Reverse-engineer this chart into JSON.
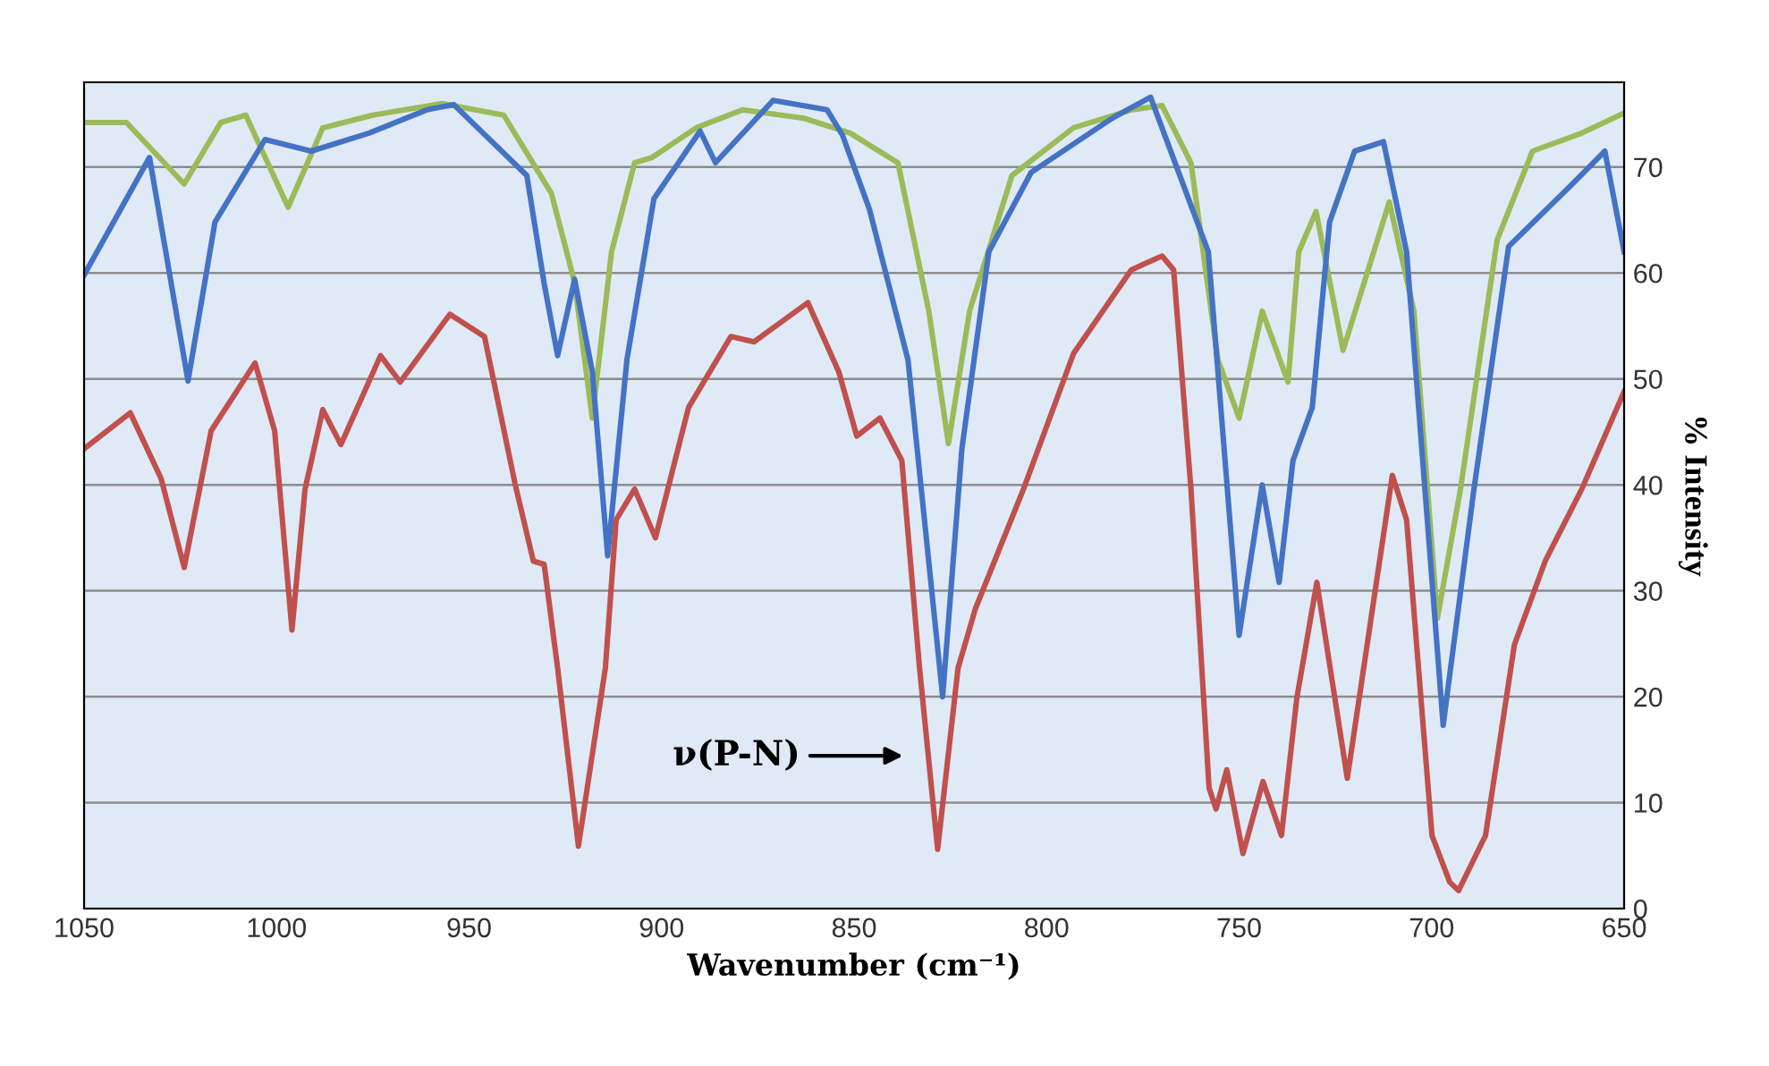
{
  "chart_data": {
    "type": "line",
    "xlabel": "Wavenumber (cm⁻¹)",
    "ylabel": "% Intensity",
    "xlim": [
      1050,
      650
    ],
    "xticks": [
      1050,
      1000,
      950,
      900,
      850,
      800,
      750,
      700,
      650
    ],
    "ylim": [
      0,
      78
    ],
    "yticks": [
      0,
      10,
      20,
      30,
      40,
      50,
      60,
      70
    ],
    "grid": "y",
    "marker": "none",
    "line_style": "solid",
    "annotations": [
      "ν(P-N)"
    ],
    "series": [
      {
        "color": "#9bbb59",
        "x": [
          1050,
          1039,
          1024,
          1014.5,
          1008,
          997,
          988,
          975,
          957,
          941,
          928.6,
          922.6,
          918,
          913,
          907,
          902.5,
          891,
          879,
          863,
          851,
          838.6,
          830.6,
          825.5,
          820,
          809,
          793,
          778,
          770,
          762.5,
          755.5,
          750,
          744,
          737.3,
          734.5,
          730,
          723,
          711,
          704.6,
          698.5,
          692.5,
          683,
          673.8,
          661,
          650
        ],
        "values": [
          74.2,
          74.2,
          68.4,
          74.2,
          74.9,
          66.2,
          73.7,
          74.9,
          76,
          74.9,
          67.5,
          59.1,
          46.3,
          62,
          70.4,
          70.9,
          73.7,
          75.4,
          74.6,
          73.2,
          70.4,
          56.4,
          43.9,
          56.4,
          69.2,
          73.7,
          75.4,
          75.8,
          70.4,
          51.8,
          46.3,
          56.4,
          49.7,
          62,
          65.8,
          52.7,
          66.7,
          56.4,
          27.4,
          39.6,
          63.1,
          71.5,
          73.2,
          75.1
        ]
      },
      {
        "color": "#4472c4",
        "x": [
          1050,
          1033,
          1023,
          1016,
          1003,
          991,
          976,
          961,
          954,
          935,
          930.5,
          927,
          922.6,
          918,
          914,
          909,
          902,
          890,
          886,
          871,
          857,
          853,
          846,
          836,
          827,
          822,
          815,
          804,
          783,
          773,
          758,
          750,
          744,
          739.6,
          736,
          731,
          726.5,
          720,
          712.5,
          706.5,
          697,
          689,
          680,
          664,
          655,
          650
        ],
        "values": [
          59.8,
          70.9,
          49.8,
          64.8,
          72.6,
          71.5,
          73.2,
          75.4,
          75.9,
          69.2,
          59,
          52.2,
          59.4,
          50.7,
          33.3,
          51.8,
          67,
          73.4,
          70.4,
          76.3,
          75.4,
          73,
          66,
          51.8,
          20,
          43.4,
          62,
          69.5,
          74.6,
          76.6,
          62,
          25.8,
          40,
          30.8,
          42.3,
          47.3,
          64.8,
          71.5,
          72.4,
          62,
          17.3,
          39.6,
          62.5,
          68.2,
          71.5,
          62
        ]
      },
      {
        "color": "#c0504d",
        "x": [
          1050,
          1038,
          1030,
          1024,
          1017,
          1005.6,
          1000.5,
          996,
          992.6,
          988,
          983.3,
          973,
          967.9,
          955,
          946,
          938,
          933.3,
          930.5,
          927,
          921.6,
          914.6,
          911.8,
          907,
          901.6,
          893,
          882,
          876,
          862,
          854,
          849.3,
          843.3,
          837.6,
          833,
          828.3,
          823,
          818.5,
          806,
          793,
          778,
          770,
          767,
          762.5,
          757.8,
          756,
          753.2,
          749,
          743.8,
          739,
          735,
          729.8,
          721.9,
          710.2,
          706.5,
          699.9,
          695.3,
          693,
          686,
          678.5,
          670.5,
          661,
          650
        ],
        "values": [
          43.4,
          46.8,
          40.6,
          32.2,
          45.1,
          51.5,
          45.1,
          26.3,
          39.6,
          47.1,
          43.8,
          52.2,
          49.7,
          56.1,
          54,
          40,
          32.8,
          32.5,
          22.7,
          5.9,
          22.7,
          36.7,
          39.6,
          35,
          47.3,
          54,
          53.5,
          57.2,
          50.7,
          44.6,
          46.3,
          42.3,
          22.7,
          5.6,
          22.7,
          28.3,
          39.6,
          52.4,
          60.3,
          61.6,
          60.3,
          39.6,
          11.4,
          9.4,
          13.1,
          5.2,
          12,
          6.9,
          19.9,
          30.8,
          12.3,
          40.9,
          36.7,
          6.9,
          2.5,
          1.7,
          6.9,
          24.9,
          32.8,
          39.6,
          48.8
        ]
      }
    ]
  }
}
